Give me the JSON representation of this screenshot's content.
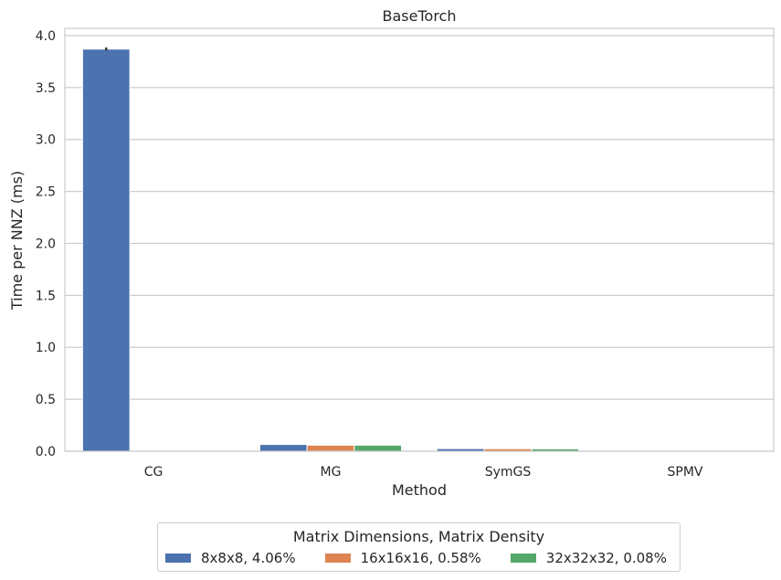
{
  "chart_data": {
    "type": "bar",
    "title": "BaseTorch",
    "xlabel": "Method",
    "ylabel": "Time per NNZ (ms)",
    "categories": [
      "CG",
      "MG",
      "SymGS",
      "SPMV"
    ],
    "ylim": [
      0,
      4.07
    ],
    "yticks": [
      "0.0",
      "0.5",
      "1.0",
      "1.5",
      "2.0",
      "2.5",
      "3.0",
      "3.5",
      "4.0"
    ],
    "grid": true,
    "legend_title": "Matrix Dimensions, Matrix Density",
    "legend_position": "bottom-center",
    "series": [
      {
        "name": "8x8x8, 4.06%",
        "color": "#4c72b0",
        "values": [
          3.87,
          0.065,
          0.025,
          0.003
        ],
        "error": [
          0.015,
          0,
          0,
          0
        ]
      },
      {
        "name": "16x16x16, 0.58%",
        "color": "#dd8452",
        "values": [
          0.002,
          0.058,
          0.024,
          0.002
        ],
        "error": [
          0,
          0,
          0,
          0
        ]
      },
      {
        "name": "32x32x32, 0.08%",
        "color": "#55a868",
        "values": [
          0.001,
          0.058,
          0.022,
          0.002
        ],
        "error": [
          0,
          0,
          0,
          0
        ]
      }
    ]
  }
}
